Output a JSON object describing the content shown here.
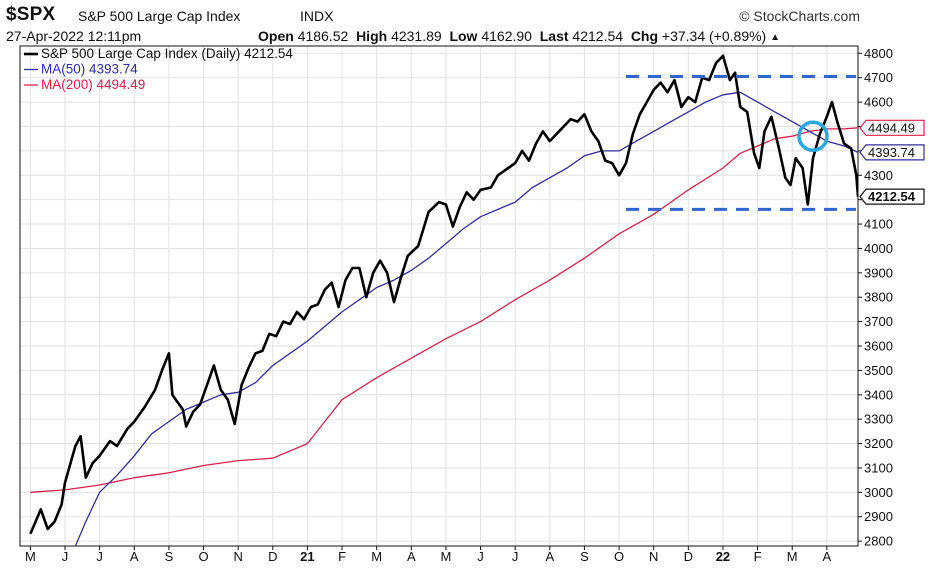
{
  "header": {
    "symbol": "$SPX",
    "name": "S&P 500 Large Cap Index",
    "exchange": "INDX",
    "brand": "© StockCharts.com",
    "date": "27-Apr-2022 12:11pm",
    "open_label": "Open",
    "open": "4186.52",
    "high_label": "High",
    "high": "4231.89",
    "low_label": "Low",
    "low": "4162.90",
    "last_label": "Last",
    "last": "4212.54",
    "chg_label": "Chg",
    "chg": "+37.34 (+0.89%)",
    "chg_arrow": "▲"
  },
  "colors": {
    "price": "#000000",
    "ma50": "#2e2f9e",
    "ma200": "#d9234a",
    "dashed": "#3366cc",
    "circle": "#29a8e0",
    "grid": "#e2e2e2"
  },
  "chart_data": {
    "type": "line",
    "y_axis_position": "right",
    "ylim": [
      2780,
      4830
    ],
    "y_ticks": [
      2800,
      2900,
      3000,
      3100,
      3200,
      3300,
      3400,
      3500,
      3600,
      3700,
      3800,
      3900,
      4000,
      4100,
      4200,
      4300,
      4400,
      4500,
      4600,
      4700,
      4800
    ],
    "x_tick_labels": [
      "M",
      "J",
      "J",
      "A",
      "S",
      "O",
      "N",
      "D",
      "21",
      "F",
      "M",
      "A",
      "M",
      "J",
      "J",
      "A",
      "S",
      "O",
      "N",
      "D",
      "22",
      "F",
      "M",
      "A"
    ],
    "x_tick_bold": [
      "21",
      "22"
    ],
    "grid": true,
    "legend_position": "top-left",
    "x_unit": "month index (0 = 1 May 2020)",
    "x_range": [
      -0.3,
      23.9
    ],
    "series": [
      {
        "name": "S&P 500 Large Cap Index (Daily) 4212.54",
        "role": "price",
        "last_label": "4212.54",
        "points": [
          [
            0,
            2830
          ],
          [
            0.3,
            2930
          ],
          [
            0.5,
            2850
          ],
          [
            0.7,
            2880
          ],
          [
            0.9,
            2950
          ],
          [
            1,
            3040
          ],
          [
            1.3,
            3190
          ],
          [
            1.45,
            3230
          ],
          [
            1.6,
            3060
          ],
          [
            1.8,
            3120
          ],
          [
            2,
            3150
          ],
          [
            2.3,
            3210
          ],
          [
            2.5,
            3190
          ],
          [
            2.8,
            3260
          ],
          [
            3,
            3290
          ],
          [
            3.3,
            3350
          ],
          [
            3.6,
            3420
          ],
          [
            3.8,
            3500
          ],
          [
            4,
            3570
          ],
          [
            4.1,
            3400
          ],
          [
            4.2,
            3380
          ],
          [
            4.4,
            3340
          ],
          [
            4.5,
            3270
          ],
          [
            4.7,
            3330
          ],
          [
            4.9,
            3360
          ],
          [
            5.1,
            3440
          ],
          [
            5.3,
            3520
          ],
          [
            5.5,
            3420
          ],
          [
            5.7,
            3380
          ],
          [
            5.9,
            3280
          ],
          [
            6.1,
            3440
          ],
          [
            6.3,
            3510
          ],
          [
            6.5,
            3570
          ],
          [
            6.7,
            3580
          ],
          [
            6.9,
            3650
          ],
          [
            7.1,
            3640
          ],
          [
            7.3,
            3700
          ],
          [
            7.5,
            3690
          ],
          [
            7.7,
            3740
          ],
          [
            7.9,
            3710
          ],
          [
            8.1,
            3760
          ],
          [
            8.3,
            3770
          ],
          [
            8.5,
            3830
          ],
          [
            8.7,
            3860
          ],
          [
            8.9,
            3760
          ],
          [
            9.1,
            3870
          ],
          [
            9.3,
            3920
          ],
          [
            9.5,
            3920
          ],
          [
            9.7,
            3800
          ],
          [
            9.9,
            3900
          ],
          [
            10.1,
            3950
          ],
          [
            10.3,
            3900
          ],
          [
            10.5,
            3780
          ],
          [
            10.7,
            3880
          ],
          [
            10.9,
            3970
          ],
          [
            11.2,
            4010
          ],
          [
            11.5,
            4150
          ],
          [
            11.8,
            4190
          ],
          [
            12,
            4180
          ],
          [
            12.2,
            4090
          ],
          [
            12.4,
            4170
          ],
          [
            12.6,
            4230
          ],
          [
            12.8,
            4200
          ],
          [
            13,
            4240
          ],
          [
            13.3,
            4250
          ],
          [
            13.5,
            4300
          ],
          [
            13.8,
            4330
          ],
          [
            14,
            4350
          ],
          [
            14.2,
            4400
          ],
          [
            14.4,
            4360
          ],
          [
            14.6,
            4430
          ],
          [
            14.8,
            4480
          ],
          [
            15,
            4440
          ],
          [
            15.2,
            4470
          ],
          [
            15.4,
            4500
          ],
          [
            15.6,
            4530
          ],
          [
            15.8,
            4520
          ],
          [
            16,
            4550
          ],
          [
            16.2,
            4480
          ],
          [
            16.4,
            4440
          ],
          [
            16.6,
            4360
          ],
          [
            16.8,
            4350
          ],
          [
            17,
            4300
          ],
          [
            17.2,
            4350
          ],
          [
            17.4,
            4470
          ],
          [
            17.6,
            4550
          ],
          [
            17.8,
            4600
          ],
          [
            18,
            4650
          ],
          [
            18.2,
            4680
          ],
          [
            18.4,
            4640
          ],
          [
            18.6,
            4690
          ],
          [
            18.8,
            4580
          ],
          [
            19,
            4620
          ],
          [
            19.2,
            4600
          ],
          [
            19.4,
            4700
          ],
          [
            19.6,
            4690
          ],
          [
            19.8,
            4760
          ],
          [
            20,
            4790
          ],
          [
            20.2,
            4690
          ],
          [
            20.35,
            4720
          ],
          [
            20.5,
            4580
          ],
          [
            20.7,
            4560
          ],
          [
            20.9,
            4390
          ],
          [
            21.05,
            4330
          ],
          [
            21.2,
            4480
          ],
          [
            21.4,
            4540
          ],
          [
            21.6,
            4420
          ],
          [
            21.8,
            4290
          ],
          [
            21.95,
            4260
          ],
          [
            22.1,
            4370
          ],
          [
            22.3,
            4330
          ],
          [
            22.45,
            4180
          ],
          [
            22.6,
            4370
          ],
          [
            22.8,
            4470
          ],
          [
            23,
            4540
          ],
          [
            23.15,
            4600
          ],
          [
            23.3,
            4520
          ],
          [
            23.5,
            4430
          ],
          [
            23.7,
            4410
          ],
          [
            23.85,
            4300
          ],
          [
            23.9,
            4212.54
          ]
        ]
      },
      {
        "name": "MA(50) 4393.74",
        "role": "ma50",
        "last_label": "4393.74",
        "points": [
          [
            1.3,
            2780
          ],
          [
            1.6,
            2880
          ],
          [
            2,
            3000
          ],
          [
            2.5,
            3070
          ],
          [
            3,
            3150
          ],
          [
            3.5,
            3240
          ],
          [
            4,
            3290
          ],
          [
            4.5,
            3340
          ],
          [
            5,
            3370
          ],
          [
            5.5,
            3400
          ],
          [
            6,
            3410
          ],
          [
            6.5,
            3450
          ],
          [
            7,
            3520
          ],
          [
            7.5,
            3570
          ],
          [
            8,
            3620
          ],
          [
            8.5,
            3680
          ],
          [
            9,
            3740
          ],
          [
            9.5,
            3790
          ],
          [
            10,
            3840
          ],
          [
            10.5,
            3870
          ],
          [
            11,
            3910
          ],
          [
            11.5,
            3960
          ],
          [
            12,
            4020
          ],
          [
            12.5,
            4080
          ],
          [
            13,
            4130
          ],
          [
            13.5,
            4160
          ],
          [
            14,
            4190
          ],
          [
            14.5,
            4250
          ],
          [
            15,
            4290
          ],
          [
            15.5,
            4330
          ],
          [
            16,
            4380
          ],
          [
            16.5,
            4400
          ],
          [
            17,
            4400
          ],
          [
            17.5,
            4440
          ],
          [
            18,
            4480
          ],
          [
            18.5,
            4520
          ],
          [
            19,
            4560
          ],
          [
            19.5,
            4600
          ],
          [
            20,
            4630
          ],
          [
            20.5,
            4640
          ],
          [
            21,
            4600
          ],
          [
            21.5,
            4560
          ],
          [
            22,
            4520
          ],
          [
            22.5,
            4480
          ],
          [
            23,
            4440
          ],
          [
            23.5,
            4420
          ],
          [
            23.9,
            4393.74
          ]
        ]
      },
      {
        "name": "MA(200) 4494.49",
        "role": "ma200",
        "last_label": "4494.49",
        "points": [
          [
            0,
            3000
          ],
          [
            1,
            3010
          ],
          [
            2,
            3030
          ],
          [
            3,
            3060
          ],
          [
            4,
            3080
          ],
          [
            5,
            3110
          ],
          [
            6,
            3130
          ],
          [
            7,
            3140
          ],
          [
            8,
            3200
          ],
          [
            8.5,
            3290
          ],
          [
            9,
            3380
          ],
          [
            10,
            3470
          ],
          [
            11,
            3550
          ],
          [
            12,
            3630
          ],
          [
            13,
            3700
          ],
          [
            14,
            3790
          ],
          [
            15,
            3870
          ],
          [
            16,
            3960
          ],
          [
            17,
            4060
          ],
          [
            18,
            4140
          ],
          [
            19,
            4240
          ],
          [
            20,
            4330
          ],
          [
            20.5,
            4390
          ],
          [
            21,
            4420
          ],
          [
            21.5,
            4450
          ],
          [
            22,
            4460
          ],
          [
            22.5,
            4480
          ],
          [
            23,
            4490
          ],
          [
            23.5,
            4490
          ],
          [
            23.9,
            4494.49
          ]
        ]
      }
    ],
    "annotations": {
      "dashed_upper": 4705,
      "dashed_lower": 4160,
      "dashed_x_start": 17.2,
      "circle_center": [
        22.6,
        4460
      ]
    }
  }
}
